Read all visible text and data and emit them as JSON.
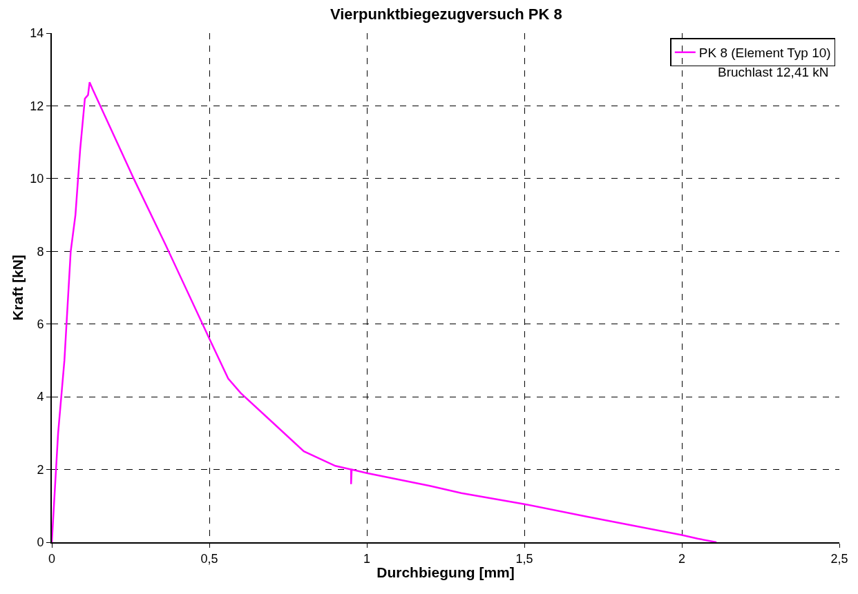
{
  "chart_data": {
    "type": "line",
    "title": "Vierpunktbiegezugversuch PK 8",
    "xlabel": "Durchbiegung [mm]",
    "ylabel": "Kraft [kN]",
    "xlim": [
      0,
      2.5
    ],
    "xticks": [
      0,
      {
        "value": 0.5,
        "label": "0,5"
      },
      1,
      {
        "value": 1.5,
        "label": "1,5"
      },
      2,
      {
        "value": 2.5,
        "label": "2,5"
      }
    ],
    "ylim": [
      0,
      14
    ],
    "yticks": [
      0,
      2,
      4,
      6,
      8,
      10,
      12,
      14
    ],
    "grid": true,
    "legend": "top right",
    "marker": "none",
    "line_style": "solid",
    "annotations": [
      "Bruchlast 12,41 kN"
    ],
    "series": [
      {
        "name": "PK 8 (Element Typ 10)",
        "color": "#ff00ff",
        "x": [
          0,
          0.01,
          0.02,
          0.04,
          0.06,
          0.075,
          0.09,
          0.105,
          0.115,
          0.12,
          0.13,
          0.26,
          0.36,
          0.5,
          0.56,
          0.6,
          0.7,
          0.8,
          0.9,
          0.95,
          0.95,
          0.952,
          1.0,
          1.2,
          1.3,
          1.5,
          1.7,
          1.85,
          2.0,
          2.05,
          2.11
        ],
        "values": [
          0,
          1.5,
          3,
          5,
          8,
          9,
          10.8,
          12.2,
          12.3,
          12.65,
          12.45,
          10,
          8.2,
          5.6,
          4.5,
          4.1,
          3.3,
          2.5,
          2.1,
          2.0,
          1.6,
          2.0,
          1.9,
          1.55,
          1.35,
          1.05,
          0.7,
          0.45,
          0.2,
          0.1,
          0
        ]
      }
    ]
  }
}
